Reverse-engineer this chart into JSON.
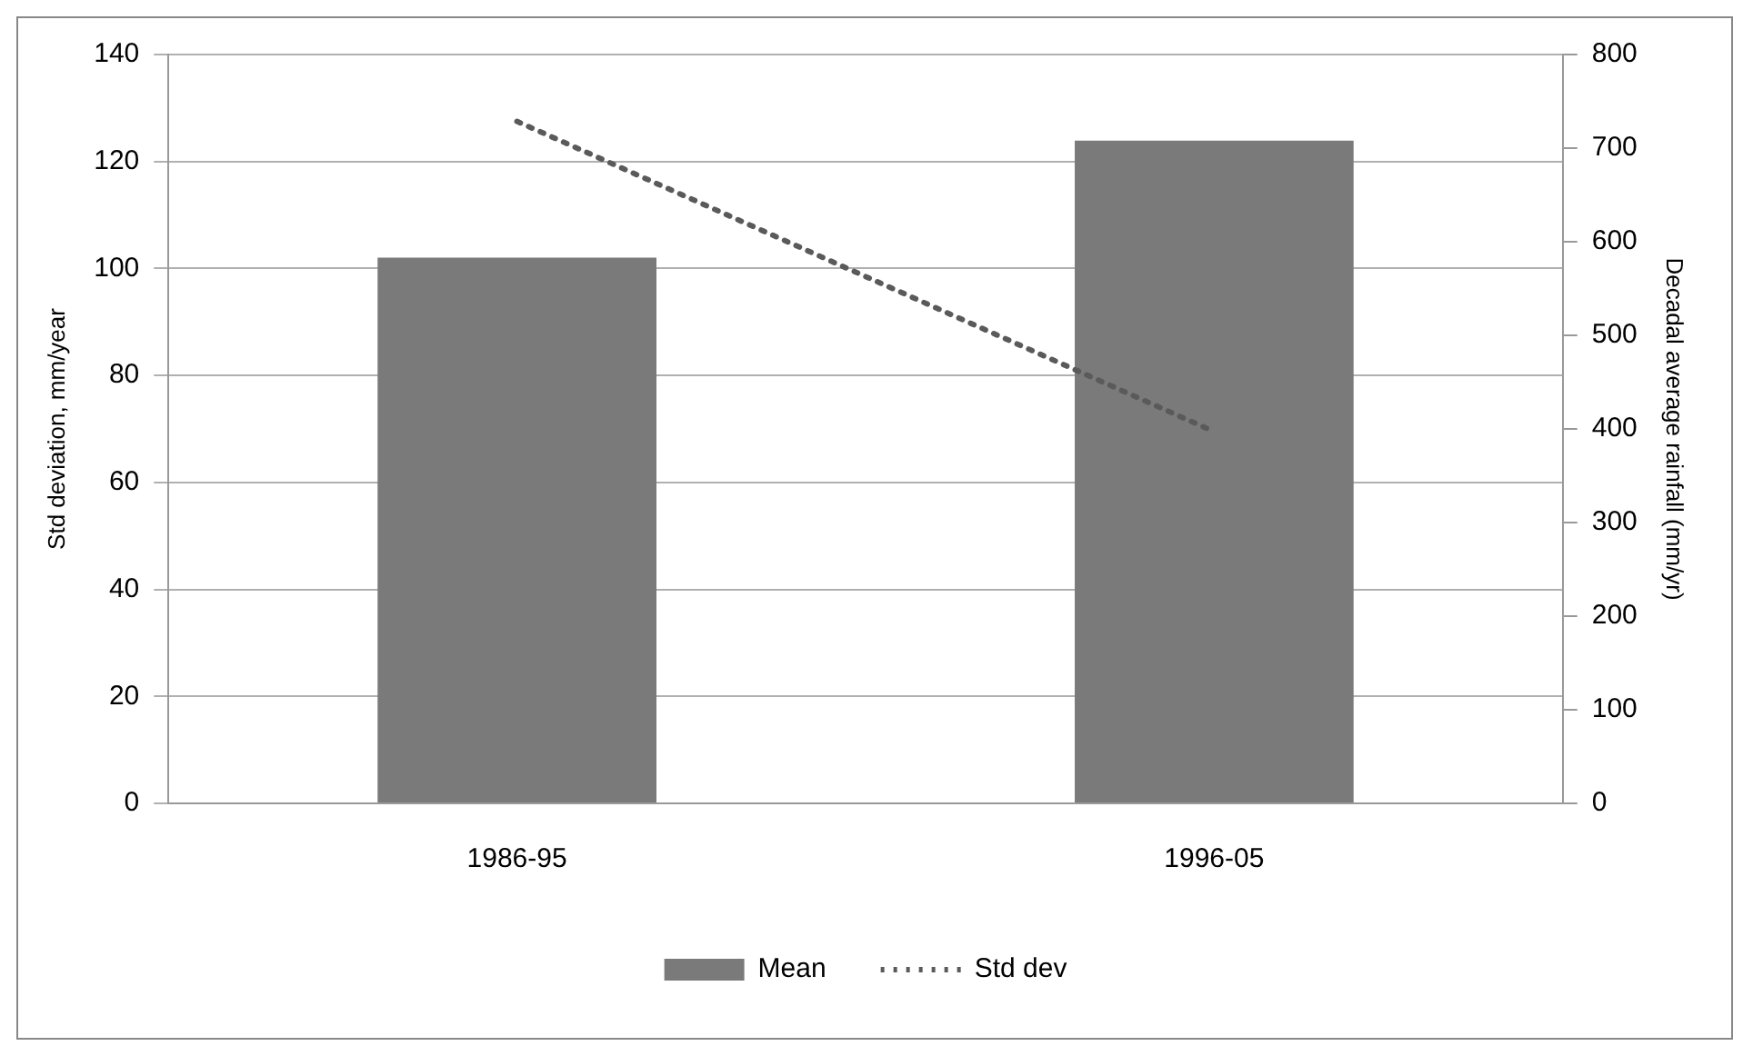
{
  "chart_data": {
    "type": "bar",
    "ylabel": "Std deviation, mm/year",
    "y2label": "Decadal average rainfall (mm/yr)",
    "categories": [
      "1986-95",
      "1996-05"
    ],
    "series": [
      {
        "name": "Mean",
        "axis": "y2",
        "color": "#7a7a7a",
        "values": [
          583,
          708
        ]
      },
      {
        "name": "Std dev",
        "type": "line",
        "axis": "y",
        "color": "#5a5a5a",
        "line_style": "dotted",
        "marker": "none",
        "values": [
          127.5,
          69.5
        ]
      }
    ],
    "ylim": [
      0,
      140
    ],
    "yticks": [
      0,
      20,
      40,
      60,
      80,
      100,
      120,
      140
    ],
    "y2lim": [
      0,
      800
    ],
    "y2ticks": [
      0,
      100,
      200,
      300,
      400,
      500,
      600,
      700,
      800
    ],
    "grid": "y",
    "legend": "bottom"
  }
}
